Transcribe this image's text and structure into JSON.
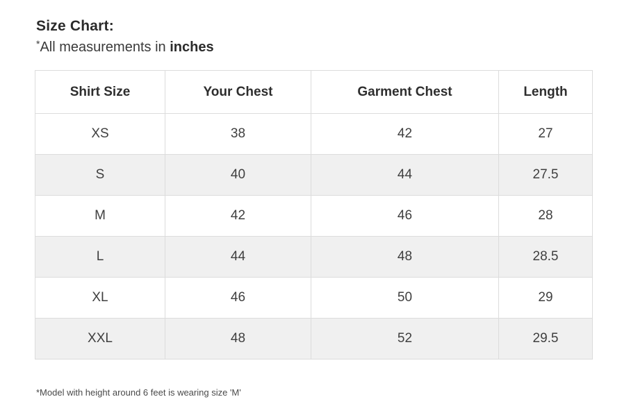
{
  "page": {
    "title": "Size Chart:",
    "subtitle": {
      "asterisk": "*",
      "text": "All measurements in ",
      "unit_bold": "inches"
    },
    "footnote": "*Model with height around 6 feet is wearing size 'M'"
  },
  "table": {
    "headers": [
      "Shirt Size",
      "Your Chest",
      "Garment Chest",
      "Length"
    ],
    "rows": [
      {
        "shirt_size": "XS",
        "your_chest": "38",
        "garment_chest": "42",
        "length": "27"
      },
      {
        "shirt_size": "S",
        "your_chest": "40",
        "garment_chest": "44",
        "length": "27.5"
      },
      {
        "shirt_size": "M",
        "your_chest": "42",
        "garment_chest": "46",
        "length": "28"
      },
      {
        "shirt_size": "L",
        "your_chest": "44",
        "garment_chest": "48",
        "length": "28.5"
      },
      {
        "shirt_size": "XL",
        "your_chest": "46",
        "garment_chest": "50",
        "length": "29"
      },
      {
        "shirt_size": "XXL",
        "your_chest": "48",
        "garment_chest": "52",
        "length": "29.5"
      }
    ]
  },
  "colors": {
    "stripe_row": "#f0f0f0",
    "border": "#dcdcdc",
    "heading_text": "#2b2b2b",
    "body_text": "#3f3f3f"
  }
}
